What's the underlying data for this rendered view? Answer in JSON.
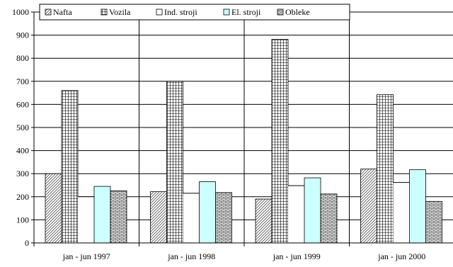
{
  "chart_data": {
    "type": "bar",
    "categories": [
      "jan - jun 1997",
      "jan - jun 1998",
      "jan - jun 1999",
      "jan - jun 2000"
    ],
    "series": [
      {
        "name": "Nafta",
        "values": [
          300,
          222,
          190,
          320
        ],
        "color": "#ffffff",
        "pattern": "diagonal-hatch"
      },
      {
        "name": "Vozila",
        "values": [
          660,
          700,
          882,
          642
        ],
        "color": "#ffffff",
        "pattern": "fine-grid"
      },
      {
        "name": "Ind. stroji",
        "values": [
          200,
          215,
          248,
          262
        ],
        "color": "#ffffff",
        "pattern": "solid"
      },
      {
        "name": "El. stroji",
        "values": [
          245,
          265,
          282,
          317
        ],
        "color": "#ccffff",
        "pattern": "solid"
      },
      {
        "name": "Obleke",
        "values": [
          226,
          218,
          212,
          180
        ],
        "color": "#ffffff",
        "pattern": "horizontal-brick"
      }
    ],
    "title": "",
    "xlabel": "",
    "ylabel": "",
    "ylim": [
      0,
      1000
    ],
    "yticks": [
      0,
      100,
      200,
      300,
      400,
      500,
      600,
      700,
      800,
      900,
      1000
    ],
    "grid": "horizontal and category separators",
    "legend": "top"
  }
}
